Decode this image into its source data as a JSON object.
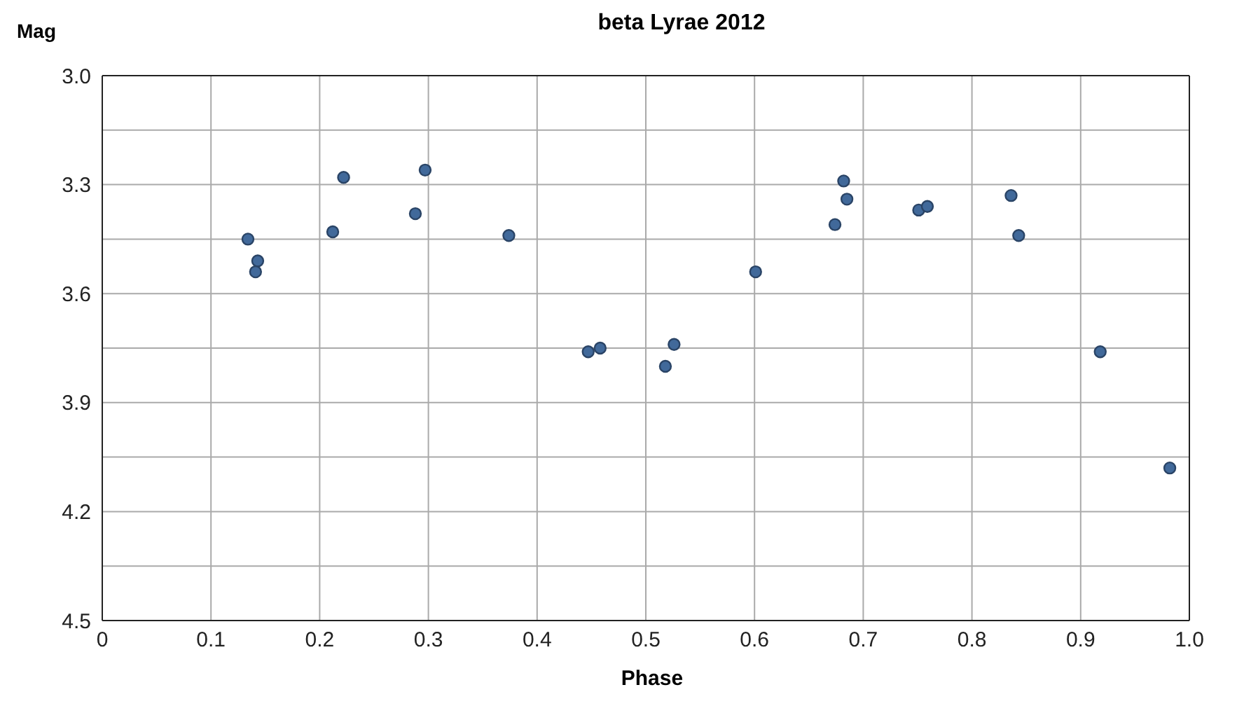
{
  "chart_data": {
    "type": "scatter",
    "title": "beta Lyrae 2012",
    "xlabel": "Phase",
    "ylabel": "Mag",
    "x": [
      0.134,
      0.143,
      0.141,
      0.212,
      0.222,
      0.288,
      0.297,
      0.374,
      0.447,
      0.458,
      0.518,
      0.526,
      0.601,
      0.674,
      0.682,
      0.685,
      0.751,
      0.759,
      0.836,
      0.843,
      0.918,
      0.982
    ],
    "series": [
      {
        "color": "#41699a",
        "values": [
          3.45,
          3.51,
          3.54,
          3.43,
          3.28,
          3.38,
          3.26,
          3.44,
          3.76,
          3.75,
          3.8,
          3.74,
          3.54,
          3.41,
          3.29,
          3.34,
          3.37,
          3.36,
          3.33,
          3.44,
          3.76,
          4.08
        ]
      }
    ],
    "xlim": [
      0,
      1
    ],
    "xticks": [
      0,
      0.1,
      0.2,
      0.3,
      0.4,
      0.5,
      0.6,
      0.7,
      0.8,
      0.9,
      {
        "value": 1,
        "label": "1.0"
      }
    ],
    "ylim": [
      4.5,
      3.0
    ],
    "yticks": [
      {
        "value": 3,
        "label": "3.0"
      },
      {
        "value": 3.15,
        "label": null
      },
      3.3,
      {
        "value": 3.45,
        "label": null
      },
      3.6,
      {
        "value": 3.75,
        "label": null
      },
      3.9,
      {
        "value": 4.05,
        "label": null
      },
      4.2,
      {
        "value": 4.35,
        "label": null
      },
      4.5
    ],
    "grid": true,
    "marker": "circle",
    "legend": false
  }
}
